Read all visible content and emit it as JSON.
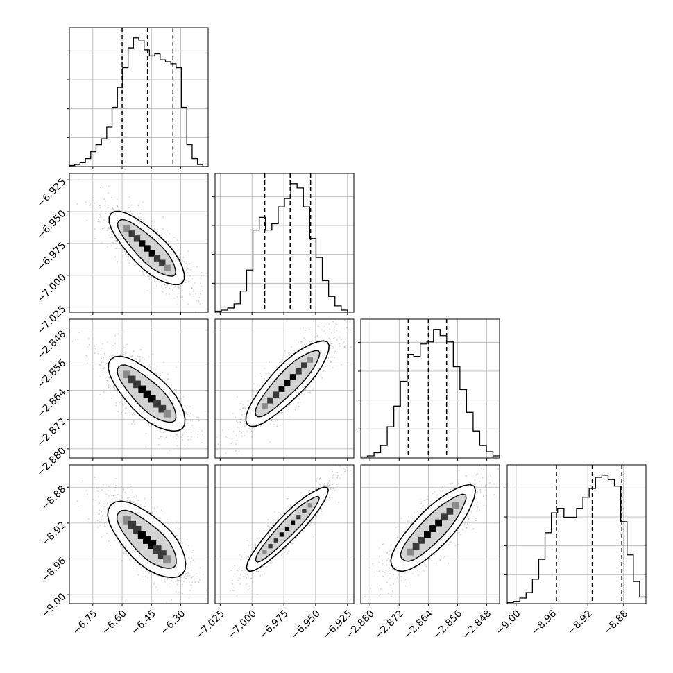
{
  "chart_data": {
    "type": "corner",
    "title": "",
    "grid": true,
    "colors": {
      "line": "#000000",
      "grid": "#b0b0b0",
      "sample": "#808080",
      "fill_light": "#d3d3d3",
      "fill_mid": "#8a8a8a",
      "fill_dark": "#000000"
    },
    "params": [
      {
        "range": [
          -6.87,
          -6.16
        ],
        "ticks": [
          -6.75,
          -6.6,
          -6.45,
          -6.3
        ],
        "tick_labels": [
          "−6.75",
          "−6.60",
          "−6.45",
          "−6.30"
        ],
        "quantiles": [
          -6.6,
          -6.47,
          -6.34
        ],
        "hist": [
          1,
          2,
          4,
          8,
          15,
          22,
          28,
          40,
          60,
          80,
          100,
          120,
          130,
          128,
          118,
          112,
          114,
          108,
          106,
          104,
          100,
          60,
          22,
          8,
          2,
          0
        ]
      },
      {
        "range": [
          -7.029,
          -6.92
        ],
        "ticks": [
          -7.025,
          -7.0,
          -6.975,
          -6.95,
          -6.925
        ],
        "tick_labels": [
          "−7.025",
          "−7.000",
          "−6.975",
          "−6.950",
          "−6.925"
        ],
        "quantiles": [
          -6.99,
          -6.97,
          -6.954
        ],
        "hist": [
          1,
          2,
          4,
          8,
          20,
          40,
          78,
          90,
          78,
          84,
          100,
          108,
          122,
          118,
          100,
          70,
          52,
          30,
          15,
          6,
          2,
          0
        ],
        "labels_mid": [
          "−6.925",
          "−6.950",
          "−6.975",
          "−7.000",
          "−7.025"
        ]
      },
      {
        "range": [
          -2.8825,
          -2.8445
        ],
        "ticks": [
          -2.88,
          -2.872,
          -2.864,
          -2.856,
          -2.848
        ],
        "tick_labels": [
          "−2.880",
          "−2.872",
          "−2.864",
          "−2.856",
          "−2.848"
        ],
        "quantiles": [
          -2.8695,
          -2.864,
          -2.859
        ],
        "hist": [
          1,
          2,
          5,
          12,
          30,
          50,
          74,
          100,
          98,
          110,
          112,
          124,
          118,
          112,
          88,
          66,
          44,
          26,
          12,
          6,
          2
        ],
        "labels_mid": [
          "−2.848",
          "−2.856",
          "−2.864",
          "−2.872",
          "−2.880"
        ]
      },
      {
        "range": [
          -9.01,
          -8.855
        ],
        "ticks": [
          -9.0,
          -8.96,
          -8.92,
          -8.88
        ],
        "tick_labels": [
          "−9.00",
          "−8.96",
          "−8.92",
          "−8.88"
        ],
        "quantiles": [
          -8.955,
          -8.915,
          -8.882
        ],
        "hist": [
          1,
          2,
          5,
          10,
          22,
          40,
          64,
          82,
          86,
          78,
          78,
          86,
          96,
          104,
          114,
          116,
          112,
          106,
          74,
          44,
          20,
          6
        ],
        "labels_mid": [
          "−8.88",
          "−8.92",
          "−8.96",
          "−9.00"
        ]
      }
    ],
    "correlations": {
      "1-0": -0.97,
      "2-0": -0.96,
      "2-1": 0.98,
      "3-0": -0.95,
      "3-1": 0.99,
      "3-2": 0.975
    }
  }
}
